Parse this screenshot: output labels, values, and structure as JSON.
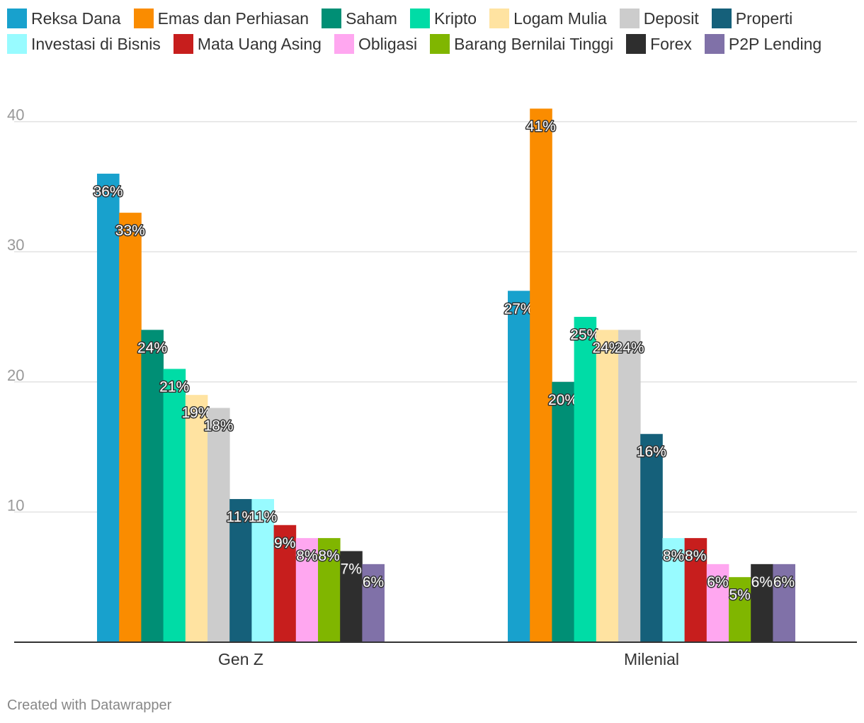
{
  "chart_data": {
    "type": "bar",
    "categories": [
      "Gen Z",
      "Milenial"
    ],
    "yticks": [
      10,
      20,
      30,
      40
    ],
    "ylim": [
      0,
      42
    ],
    "grid": true,
    "legend_position": "top",
    "value_suffix": "%",
    "series": [
      {
        "name": "Reksa Dana",
        "color": "#18a1cd",
        "values": [
          36,
          27
        ]
      },
      {
        "name": "Emas dan Perhiasan",
        "color": "#fa8c00",
        "values": [
          33,
          41
        ]
      },
      {
        "name": "Saham",
        "color": "#008f75",
        "values": [
          24,
          20
        ]
      },
      {
        "name": "Kripto",
        "color": "#00dca6",
        "values": [
          21,
          25
        ]
      },
      {
        "name": "Logam Mulia",
        "color": "#ffe3a1",
        "values": [
          19,
          24
        ]
      },
      {
        "name": "Deposit",
        "color": "#cccccc",
        "values": [
          18,
          24
        ]
      },
      {
        "name": "Properti",
        "color": "#15607a",
        "values": [
          11,
          16
        ]
      },
      {
        "name": "Investasi di Bisnis",
        "color": "#98fbff",
        "values": [
          11,
          8
        ]
      },
      {
        "name": "Mata Uang Asing",
        "color": "#c71e1d",
        "values": [
          9,
          8
        ]
      },
      {
        "name": "Obligasi",
        "color": "#ffa7f0",
        "values": [
          8,
          6
        ]
      },
      {
        "name": "Barang Bernilai Tinggi",
        "color": "#80b600",
        "values": [
          8,
          5
        ]
      },
      {
        "name": "Forex",
        "color": "#2e2e2e",
        "values": [
          7,
          6
        ]
      },
      {
        "name": "P2P Lending",
        "color": "#8071a8",
        "values": [
          6,
          6
        ]
      }
    ]
  },
  "footer": "Created with Datawrapper"
}
